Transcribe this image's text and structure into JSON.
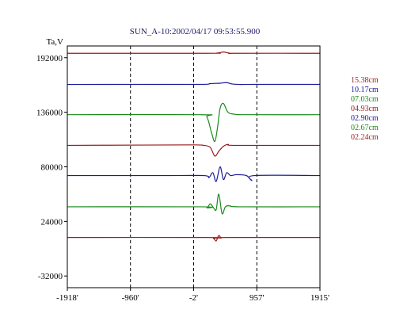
{
  "chart_data": {
    "type": "line",
    "title": "SUN_A-10:2002/04/17 09:53:55.900",
    "ylabel": "Ta,V",
    "xlabel": "",
    "xlim": [
      -1918,
      1915
    ],
    "ylim": [
      -44000,
      204000
    ],
    "grid": "vertical dashed at -960, -2, 957",
    "x_ticks": [
      {
        "value": -1918,
        "label": "-1918'"
      },
      {
        "value": -960,
        "label": "-960'"
      },
      {
        "value": -2,
        "label": "-2'"
      },
      {
        "value": 957,
        "label": "957'"
      },
      {
        "value": 1915,
        "label": "1915'"
      }
    ],
    "y_ticks": [
      {
        "value": 192000,
        "label": "192000"
      },
      {
        "value": 136000,
        "label": "136000"
      },
      {
        "value": 80000,
        "label": "80000"
      },
      {
        "value": 24000,
        "label": "24000"
      },
      {
        "value": -32000,
        "label": "-32000"
      }
    ],
    "series": [
      {
        "name": "15.38cm",
        "color": "#9a1a1a",
        "x": [
          -1918,
          200,
          350,
          450,
          500,
          560,
          650,
          1915
        ],
        "values": [
          196500,
          196500,
          196700,
          197800,
          197200,
          196400,
          196500,
          196500
        ]
      },
      {
        "name": "10.17cm",
        "color": "#1a1a9a",
        "x": [
          -1918,
          -1000,
          100,
          250,
          400,
          500,
          580,
          700,
          900,
          1915
        ],
        "values": [
          164500,
          164600,
          164600,
          165400,
          165800,
          166400,
          165000,
          164500,
          164600,
          164600
        ]
      },
      {
        "name": "07.03cm",
        "color": "#1a8a1a",
        "x": [
          -1918,
          100,
          200,
          270,
          320,
          360,
          400,
          450,
          520,
          620,
          800,
          1915
        ],
        "values": [
          133500,
          133500,
          131000,
          115000,
          106000,
          120000,
          140000,
          145000,
          136000,
          134000,
          133500,
          133500
        ]
      },
      {
        "name": "04.93cm",
        "color": "#9a1a1a",
        "x": [
          -1918,
          -800,
          0,
          150,
          250,
          320,
          380,
          450,
          520,
          650,
          1915
        ],
        "values": [
          102000,
          102300,
          102500,
          102000,
          100000,
          91000,
          96000,
          101000,
          103000,
          102000,
          102000
        ]
      },
      {
        "name": "02.90cm",
        "color": "#1a1a9a",
        "x": [
          -1918,
          -500,
          150,
          230,
          290,
          340,
          400,
          450,
          500,
          560,
          650,
          800,
          880,
          920,
          1915
        ],
        "values": [
          71000,
          71000,
          71000,
          69000,
          74000,
          65000,
          80000,
          67000,
          74000,
          71000,
          72000,
          71000,
          66000,
          71000,
          71000
        ]
      },
      {
        "name": "02.67cm",
        "color": "#1a8a1a",
        "x": [
          -1918,
          100,
          200,
          250,
          300,
          340,
          380,
          430,
          480,
          550,
          700,
          1915
        ],
        "values": [
          39000,
          39000,
          38000,
          42000,
          38000,
          36000,
          52000,
          32000,
          39000,
          40000,
          39000,
          39000
        ]
      },
      {
        "name": "02.24cm",
        "color": "#9a1a1a",
        "x": [
          -1918,
          200,
          300,
          340,
          380,
          420,
          500,
          1915
        ],
        "values": [
          7500,
          7500,
          6500,
          4000,
          9500,
          7000,
          7500,
          7500
        ]
      }
    ]
  }
}
